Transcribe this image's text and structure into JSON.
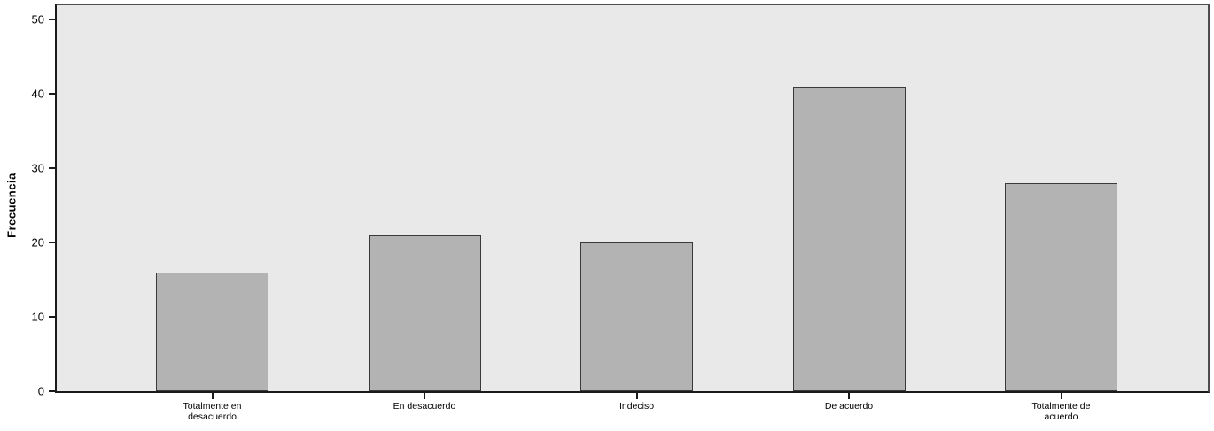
{
  "chart_data": {
    "type": "bar",
    "title": "",
    "xlabel": "",
    "ylabel": "Frecuencia",
    "categories": [
      "Totalmente en\ndesacuerdo",
      "En desacuerdo",
      "Indeciso",
      "De acuerdo",
      "Totalmente de\nacuerdo"
    ],
    "values": [
      16,
      21,
      20,
      41,
      28
    ],
    "ylim": [
      0,
      50
    ],
    "yticks": [
      0,
      10,
      20,
      30,
      40,
      50
    ],
    "grid": false,
    "legend_position": "none",
    "colors": {
      "page_background": "#ffffff",
      "plot_background": "#e9e9e9",
      "bar_fill": "#b3b3b3",
      "bar_border": "#3a3a3a",
      "axis": "#1a1a1a",
      "frame": "#4d4d4d",
      "text": "#000000"
    }
  }
}
